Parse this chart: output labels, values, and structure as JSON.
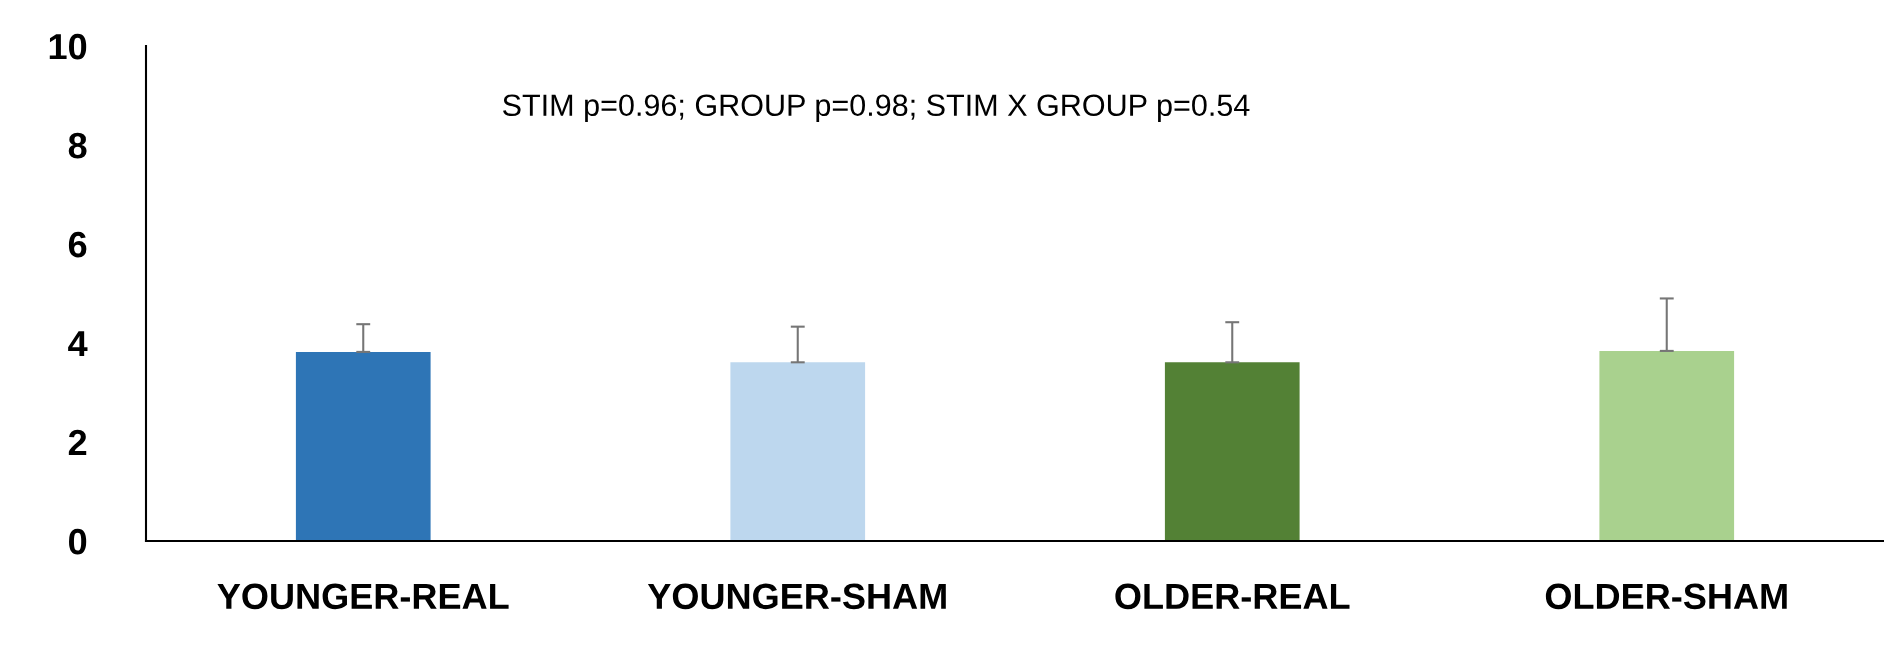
{
  "chart_data": {
    "type": "bar",
    "categories": [
      "YOUNGER-REAL",
      "YOUNGER-SHAM",
      "OLDER-REAL",
      "OLDER-SHAM"
    ],
    "values": [
      3.82,
      3.61,
      3.61,
      3.84
    ],
    "colors": [
      "#2e75b6",
      "#bdd7ee",
      "#538135",
      "#a9d18e"
    ],
    "errors": [
      [
        3.82,
        4.38
      ],
      [
        3.61,
        4.33
      ],
      [
        3.61,
        4.42
      ],
      [
        3.84,
        4.9
      ]
    ],
    "ylim": [
      0,
      10
    ],
    "yticks": [
      0,
      2,
      4,
      6,
      8,
      10
    ],
    "grid": false,
    "annotations": [
      "STIM p=0.96; GROUP p=0.98; STIM X GROUP p=0.54"
    ]
  }
}
